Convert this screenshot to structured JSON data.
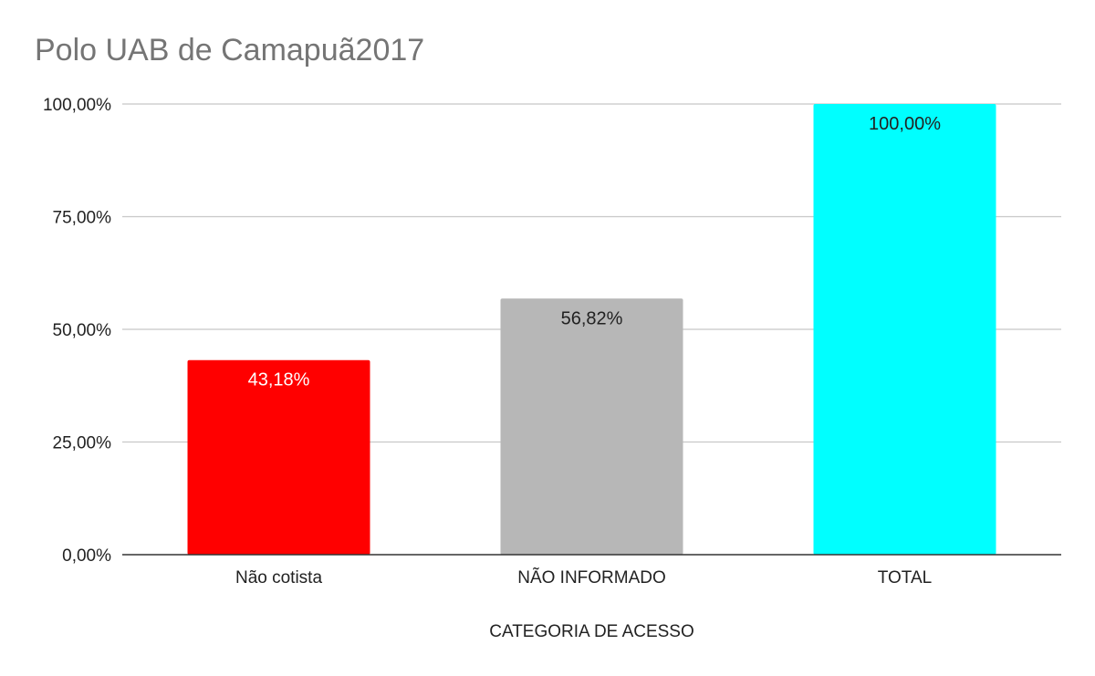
{
  "chart_data": {
    "type": "bar",
    "title": "Polo UAB de Camapuã2017",
    "xlabel": "CATEGORIA DE ACESSO",
    "ylabel": "",
    "categories": [
      "Não cotista",
      "NÃO INFORMADO",
      "TOTAL"
    ],
    "values": [
      43.18,
      56.82,
      100.0
    ],
    "data_labels": [
      "43,18%",
      "56,82%",
      "100,00%"
    ],
    "colors": [
      "#ff0000",
      "#b7b7b7",
      "#00ffff"
    ],
    "label_colors": [
      "#ffffff",
      "#222222",
      "#222222"
    ],
    "ylim": [
      0,
      100
    ],
    "yticks": [
      0,
      25,
      50,
      75,
      100
    ],
    "ytick_labels": [
      "0,00%",
      "25,00%",
      "50,00%",
      "75,00%",
      "100,00%"
    ],
    "grid": true,
    "legend": "none"
  }
}
